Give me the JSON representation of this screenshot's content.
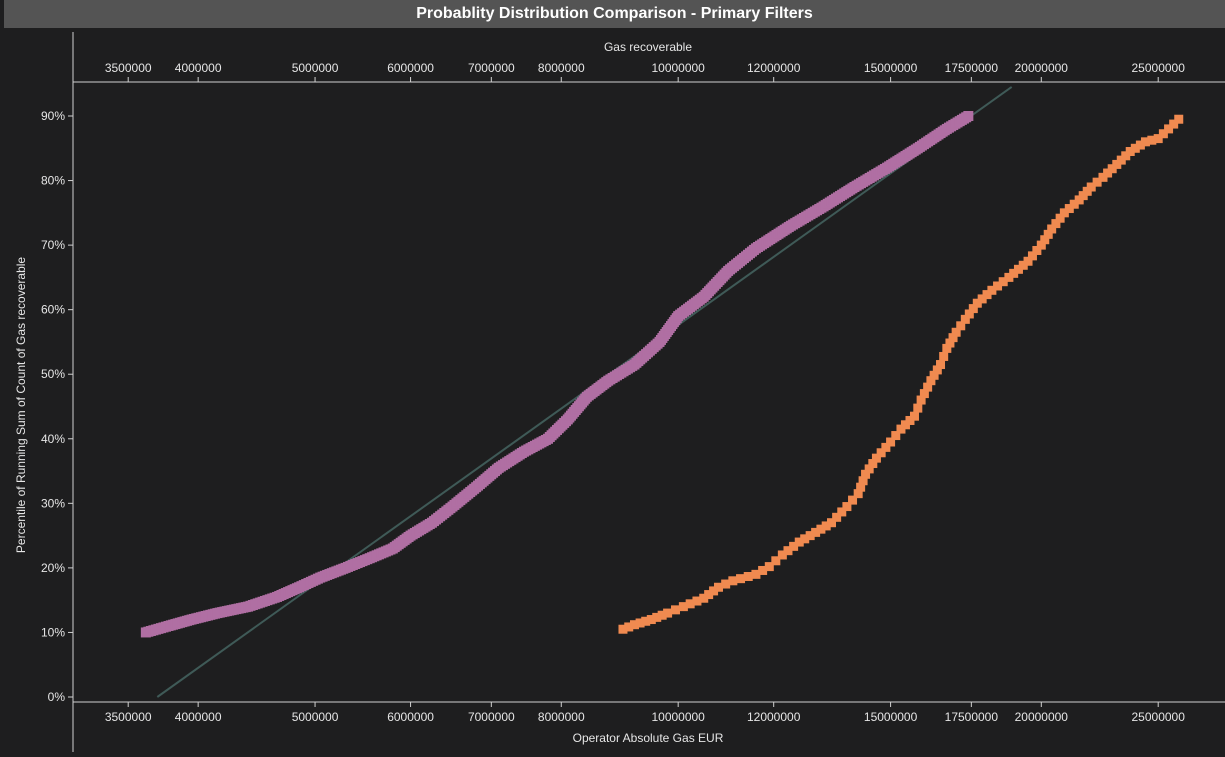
{
  "title": "Probablity Distribution Comparison - Primary Filters",
  "colors": {
    "background": "#1e1e1f",
    "title_bar": "#545454",
    "axis": "#d0d0d0",
    "series_pink": "#b06fa3",
    "series_orange": "#f08a50",
    "trend_line": "#3f5a57"
  },
  "chart_data": {
    "type": "scatter",
    "title": "Probablity Distribution Comparison - Primary Filters",
    "xlabel": "Operator Absolute Gas EUR",
    "x2label": "Gas recoverable",
    "ylabel": "Percentile of Running Sum of Count of Gas recoverable",
    "xscale": "log",
    "xlim": [
      3150000,
      28400000
    ],
    "ylim": [
      0,
      95
    ],
    "x_ticks": [
      3500000,
      4000000,
      5000000,
      6000000,
      7000000,
      8000000,
      10000000,
      12000000,
      15000000,
      17500000,
      20000000,
      25000000
    ],
    "x_tick_labels": [
      "3500000",
      "4000000",
      "5000000",
      "6000000",
      "7000000",
      "8000000",
      "10000000",
      "12000000",
      "15000000",
      "17500000",
      "20000000",
      "25000000"
    ],
    "y_ticks": [
      0,
      10,
      20,
      30,
      40,
      50,
      60,
      70,
      80,
      90
    ],
    "y_tick_labels": [
      "0%",
      "10%",
      "20%",
      "30%",
      "40%",
      "50%",
      "60%",
      "70%",
      "80%",
      "90%"
    ],
    "grid": false,
    "legend": "none",
    "series": [
      {
        "color": "#b06fa3",
        "points": [
          [
            3620000,
            10
          ],
          [
            3780000,
            11
          ],
          [
            3950000,
            12
          ],
          [
            4150000,
            13
          ],
          [
            4400000,
            14
          ],
          [
            4650000,
            15.5
          ],
          [
            4850000,
            17
          ],
          [
            5050000,
            18.5
          ],
          [
            5300000,
            20
          ],
          [
            5550000,
            21.5
          ],
          [
            5800000,
            23
          ],
          [
            6000000,
            25
          ],
          [
            6250000,
            27
          ],
          [
            6500000,
            29.5
          ],
          [
            6800000,
            32.5
          ],
          [
            7100000,
            35.5
          ],
          [
            7450000,
            38
          ],
          [
            7800000,
            40
          ],
          [
            8100000,
            43
          ],
          [
            8400000,
            46.5
          ],
          [
            8750000,
            49
          ],
          [
            9200000,
            51.5
          ],
          [
            9650000,
            55
          ],
          [
            10000000,
            59
          ],
          [
            10500000,
            62
          ],
          [
            11000000,
            66
          ],
          [
            11600000,
            69.5
          ],
          [
            12400000,
            73
          ],
          [
            13200000,
            76
          ],
          [
            14000000,
            79
          ],
          [
            14900000,
            82
          ],
          [
            15800000,
            85
          ],
          [
            16700000,
            88
          ],
          [
            17400000,
            90
          ]
        ]
      },
      {
        "color": "#f08a50",
        "points": [
          [
            9000000,
            10.5
          ],
          [
            9200000,
            11.2
          ],
          [
            9500000,
            12
          ],
          [
            9800000,
            13
          ],
          [
            10100000,
            14
          ],
          [
            10500000,
            15.3
          ],
          [
            10800000,
            17
          ],
          [
            11100000,
            18
          ],
          [
            11600000,
            19
          ],
          [
            11900000,
            20.2
          ],
          [
            12200000,
            22
          ],
          [
            12600000,
            24
          ],
          [
            13000000,
            25.5
          ],
          [
            13400000,
            27
          ],
          [
            13800000,
            29.5
          ],
          [
            14100000,
            31.5
          ],
          [
            14300000,
            34.5
          ],
          [
            14600000,
            37
          ],
          [
            15000000,
            39.5
          ],
          [
            15300000,
            41.5
          ],
          [
            15700000,
            43.5
          ],
          [
            15900000,
            46
          ],
          [
            16200000,
            49
          ],
          [
            16500000,
            51.5
          ],
          [
            16700000,
            54
          ],
          [
            17000000,
            56.5
          ],
          [
            17300000,
            58.5
          ],
          [
            17700000,
            61
          ],
          [
            18200000,
            63
          ],
          [
            18800000,
            65
          ],
          [
            19500000,
            67.5
          ],
          [
            20000000,
            70
          ],
          [
            20400000,
            72.5
          ],
          [
            20900000,
            75
          ],
          [
            21500000,
            77
          ],
          [
            22000000,
            79
          ],
          [
            22500000,
            80.5
          ],
          [
            23100000,
            82.5
          ],
          [
            23700000,
            84.5
          ],
          [
            24400000,
            86
          ],
          [
            25000000,
            86.5
          ],
          [
            25500000,
            88
          ],
          [
            26000000,
            89.5
          ]
        ]
      }
    ],
    "trend_line": {
      "color": "#3f5a57",
      "points": [
        [
          3700000,
          0
        ],
        [
          18900000,
          94.5
        ]
      ]
    }
  }
}
